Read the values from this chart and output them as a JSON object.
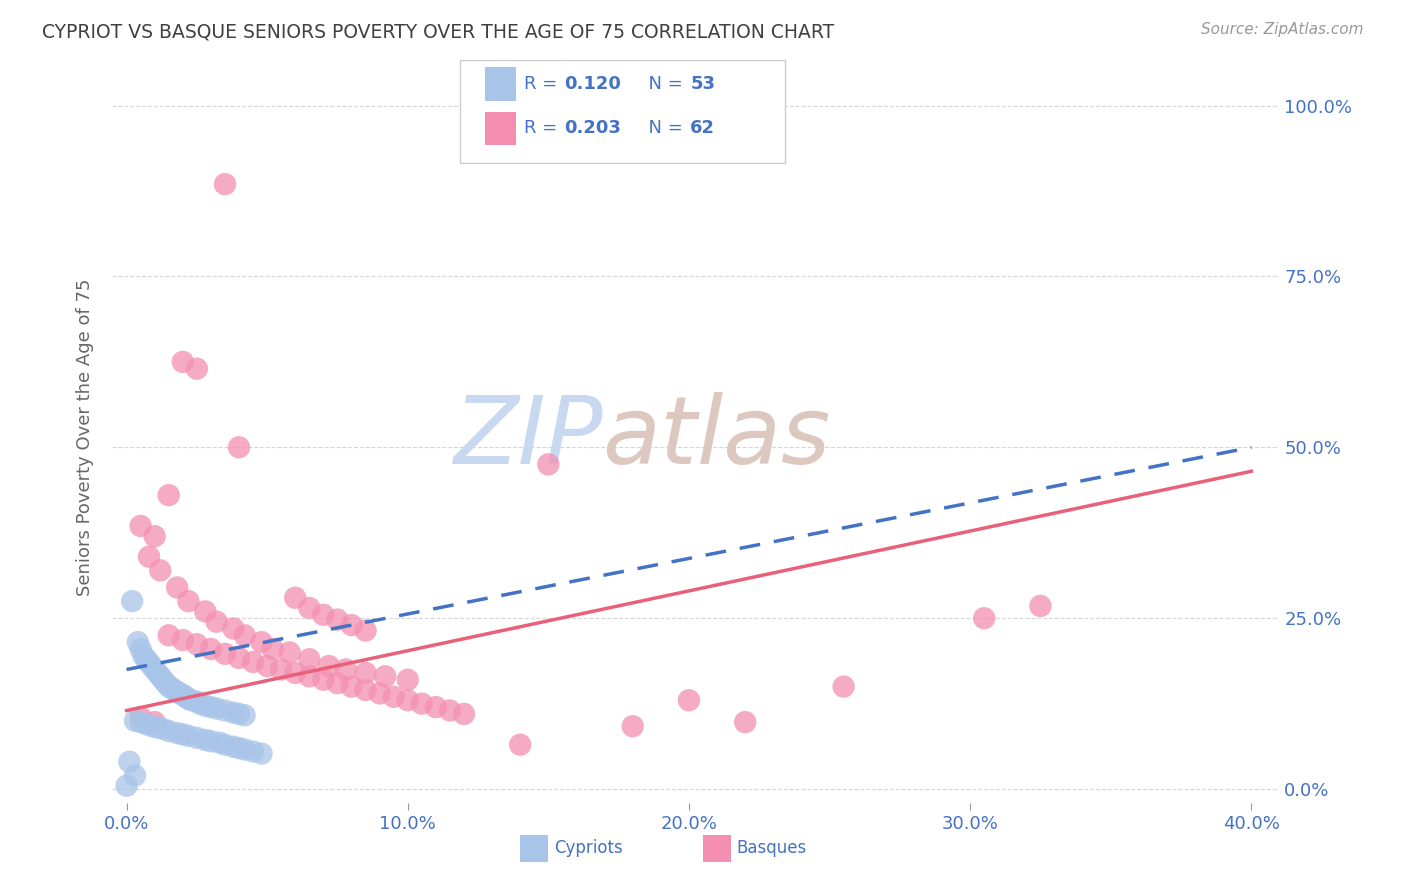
{
  "title": "CYPRIOT VS BASQUE SENIORS POVERTY OVER THE AGE OF 75 CORRELATION CHART",
  "source": "Source: ZipAtlas.com",
  "ylabel": "Seniors Poverty Over the Age of 75",
  "cypriot_R": 0.12,
  "cypriot_N": 53,
  "basque_R": 0.203,
  "basque_N": 62,
  "cypriot_color": "#a8c4e8",
  "basque_color": "#f48fb1",
  "cypriot_line_color": "#4472c4",
  "basque_line_color": "#e8607a",
  "tick_color": "#4472c4",
  "title_color": "#404040",
  "watermark_zip_color": "#c8d8f0",
  "watermark_atlas_color": "#d8c8c0",
  "legend_label_color": "#4472c4",
  "xlim": [
    -0.005,
    0.41
  ],
  "ylim": [
    -0.02,
    1.05
  ],
  "cypriot_x": [
    0.002,
    0.004,
    0.005,
    0.006,
    0.007,
    0.008,
    0.009,
    0.01,
    0.011,
    0.012,
    0.013,
    0.014,
    0.015,
    0.016,
    0.017,
    0.018,
    0.019,
    0.02,
    0.021,
    0.022,
    0.023,
    0.025,
    0.026,
    0.028,
    0.03,
    0.032,
    0.035,
    0.038,
    0.04,
    0.042,
    0.003,
    0.005,
    0.007,
    0.009,
    0.011,
    0.013,
    0.015,
    0.018,
    0.02,
    0.022,
    0.025,
    0.028,
    0.03,
    0.033,
    0.035,
    0.038,
    0.04,
    0.042,
    0.045,
    0.048,
    0.001,
    0.003,
    0.0
  ],
  "cypriot_y": [
    0.275,
    0.215,
    0.205,
    0.195,
    0.19,
    0.185,
    0.18,
    0.175,
    0.17,
    0.165,
    0.16,
    0.155,
    0.15,
    0.148,
    0.145,
    0.142,
    0.14,
    0.138,
    0.135,
    0.132,
    0.13,
    0.128,
    0.125,
    0.122,
    0.12,
    0.118,
    0.115,
    0.112,
    0.11,
    0.108,
    0.1,
    0.098,
    0.095,
    0.092,
    0.09,
    0.088,
    0.085,
    0.082,
    0.08,
    0.078,
    0.075,
    0.072,
    0.07,
    0.068,
    0.065,
    0.062,
    0.06,
    0.058,
    0.055,
    0.052,
    0.04,
    0.02,
    0.005
  ],
  "basque_x": [
    0.035,
    0.02,
    0.025,
    0.04,
    0.015,
    0.005,
    0.01,
    0.008,
    0.012,
    0.018,
    0.022,
    0.028,
    0.032,
    0.038,
    0.042,
    0.048,
    0.052,
    0.058,
    0.065,
    0.072,
    0.078,
    0.085,
    0.092,
    0.1,
    0.06,
    0.065,
    0.07,
    0.075,
    0.08,
    0.085,
    0.015,
    0.02,
    0.025,
    0.03,
    0.035,
    0.04,
    0.045,
    0.05,
    0.055,
    0.06,
    0.065,
    0.07,
    0.075,
    0.08,
    0.085,
    0.09,
    0.095,
    0.1,
    0.105,
    0.11,
    0.115,
    0.12,
    0.2,
    0.255,
    0.305,
    0.325,
    0.15,
    0.18,
    0.22,
    0.14,
    0.005,
    0.01
  ],
  "basque_y": [
    0.885,
    0.625,
    0.615,
    0.5,
    0.43,
    0.385,
    0.37,
    0.34,
    0.32,
    0.295,
    0.275,
    0.26,
    0.245,
    0.235,
    0.225,
    0.215,
    0.205,
    0.2,
    0.19,
    0.18,
    0.175,
    0.17,
    0.165,
    0.16,
    0.28,
    0.265,
    0.255,
    0.248,
    0.24,
    0.232,
    0.225,
    0.218,
    0.212,
    0.205,
    0.198,
    0.192,
    0.186,
    0.18,
    0.175,
    0.17,
    0.165,
    0.16,
    0.155,
    0.15,
    0.145,
    0.14,
    0.135,
    0.13,
    0.125,
    0.12,
    0.115,
    0.11,
    0.13,
    0.15,
    0.25,
    0.268,
    0.475,
    0.092,
    0.098,
    0.065,
    0.105,
    0.098
  ],
  "cy_line_x0": 0.0,
  "cy_line_x1": 0.4,
  "cy_line_y0": 0.175,
  "cy_line_y1": 0.5,
  "bq_line_x0": 0.0,
  "bq_line_x1": 0.4,
  "bq_line_y0": 0.115,
  "bq_line_y1": 0.465
}
